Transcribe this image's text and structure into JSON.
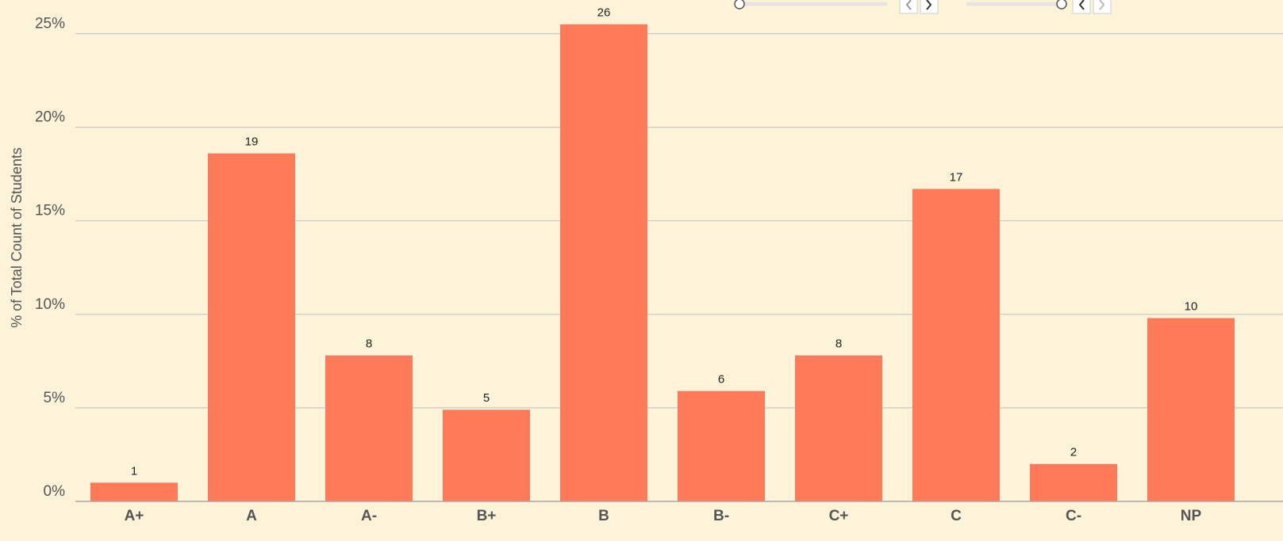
{
  "chart_data": {
    "type": "bar",
    "y_label": "% of Total Count of Students",
    "categories": [
      "A+",
      "A",
      "A-",
      "B+",
      "B",
      "B-",
      "C+",
      "C",
      "C-",
      "NP"
    ],
    "values": [
      1.0,
      18.6,
      7.8,
      4.9,
      25.5,
      5.9,
      7.8,
      16.7,
      2.0,
      9.8
    ],
    "counts": [
      1,
      19,
      8,
      5,
      26,
      6,
      8,
      17,
      2,
      10
    ],
    "color": "#ff7a59",
    "ylim": [
      0,
      26.8
    ],
    "yticks": [
      {
        "value": 0,
        "label": "0%"
      },
      {
        "value": 5,
        "label": "5%"
      },
      {
        "value": 10,
        "label": "10%"
      },
      {
        "value": 15,
        "label": "15%"
      },
      {
        "value": 20,
        "label": "20%"
      },
      {
        "value": 25,
        "label": "25%"
      }
    ],
    "grid": true
  }
}
